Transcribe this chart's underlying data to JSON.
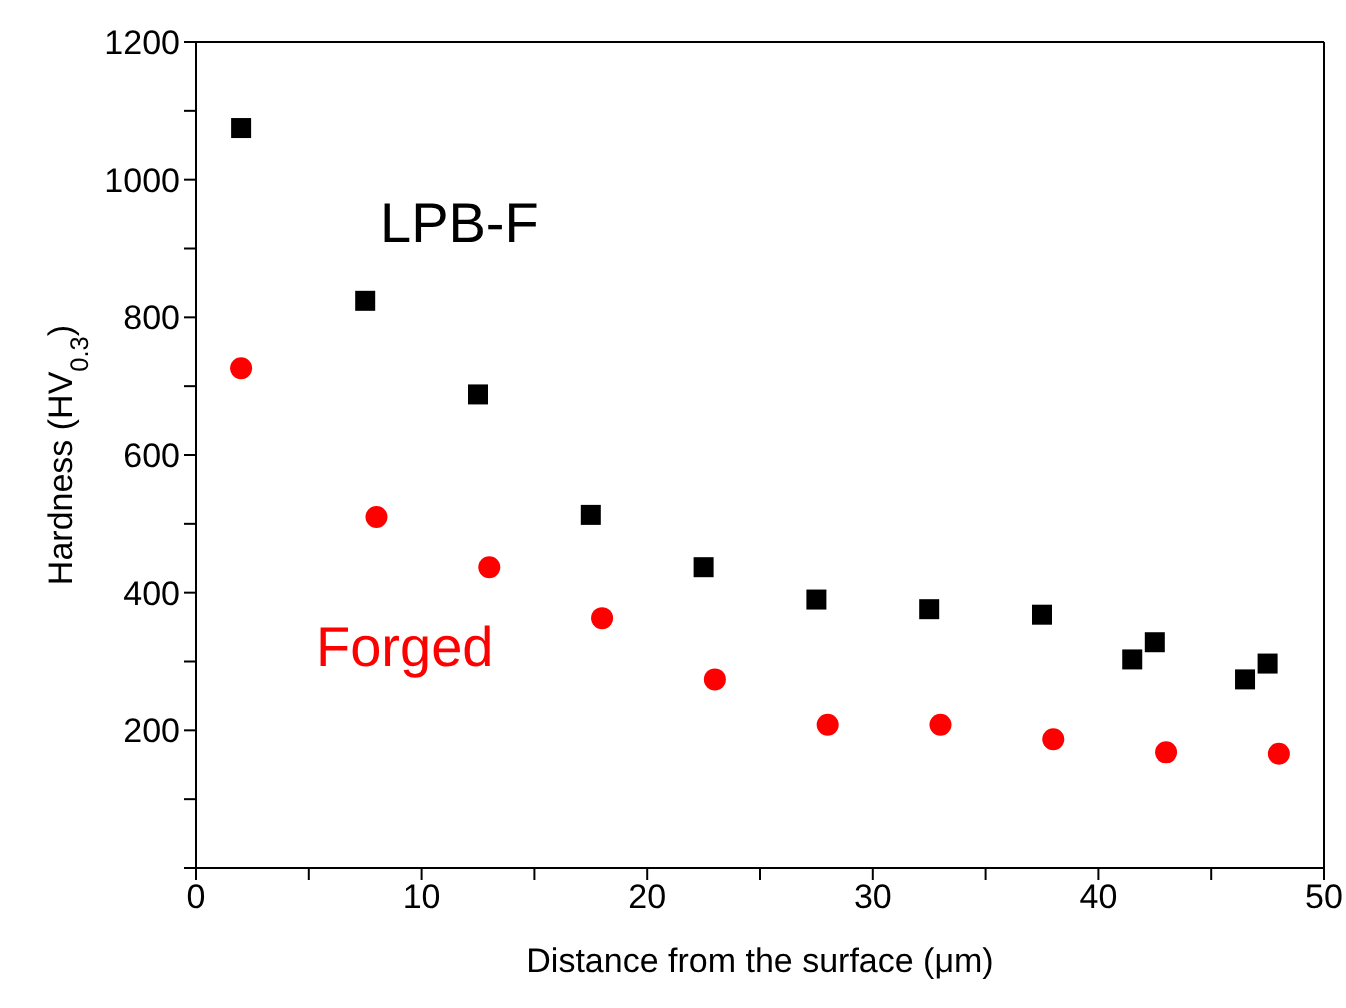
{
  "chart_data": {
    "type": "scatter",
    "xlabel": "Distance from the surface (μm)",
    "ylabel": "Hardness (HV$_{0.3}$)",
    "xlim": [
      0,
      50
    ],
    "xticks": [
      0,
      {
        "value": 5,
        "label": null
      },
      10,
      {
        "value": 15,
        "label": null
      },
      20,
      {
        "value": 25,
        "label": null
      },
      30,
      {
        "value": 35,
        "label": null
      },
      40,
      {
        "value": 45,
        "label": null
      },
      50
    ],
    "ylim": [
      0,
      1200
    ],
    "yticks": [
      {
        "value": 0,
        "label": null
      },
      {
        "value": 100,
        "label": null
      },
      200,
      {
        "value": 300,
        "label": null
      },
      400,
      {
        "value": 500,
        "label": null
      },
      600,
      {
        "value": 700,
        "label": null
      },
      800,
      {
        "value": 900,
        "label": null
      },
      1000,
      {
        "value": 1100,
        "label": null
      },
      1200
    ],
    "legend": false,
    "series": [
      {
        "name": "LPB-F",
        "color": "#000000",
        "marker": "square",
        "x": [
          2,
          7.5,
          12.5,
          17.5,
          22.5,
          27.5,
          32.5,
          37.5,
          41.5,
          42.5,
          46.5,
          47.5
        ],
        "values": [
          1075,
          824,
          688,
          513,
          437,
          390,
          376,
          368,
          303,
          328,
          274,
          297
        ]
      },
      {
        "name": "Forged",
        "color": "#ff0000",
        "marker": "circle",
        "x": [
          2,
          8,
          13,
          18,
          23,
          28,
          33,
          38,
          43,
          48
        ],
        "values": [
          726,
          510,
          437,
          363,
          274,
          208,
          208,
          187,
          168,
          166
        ]
      }
    ]
  }
}
